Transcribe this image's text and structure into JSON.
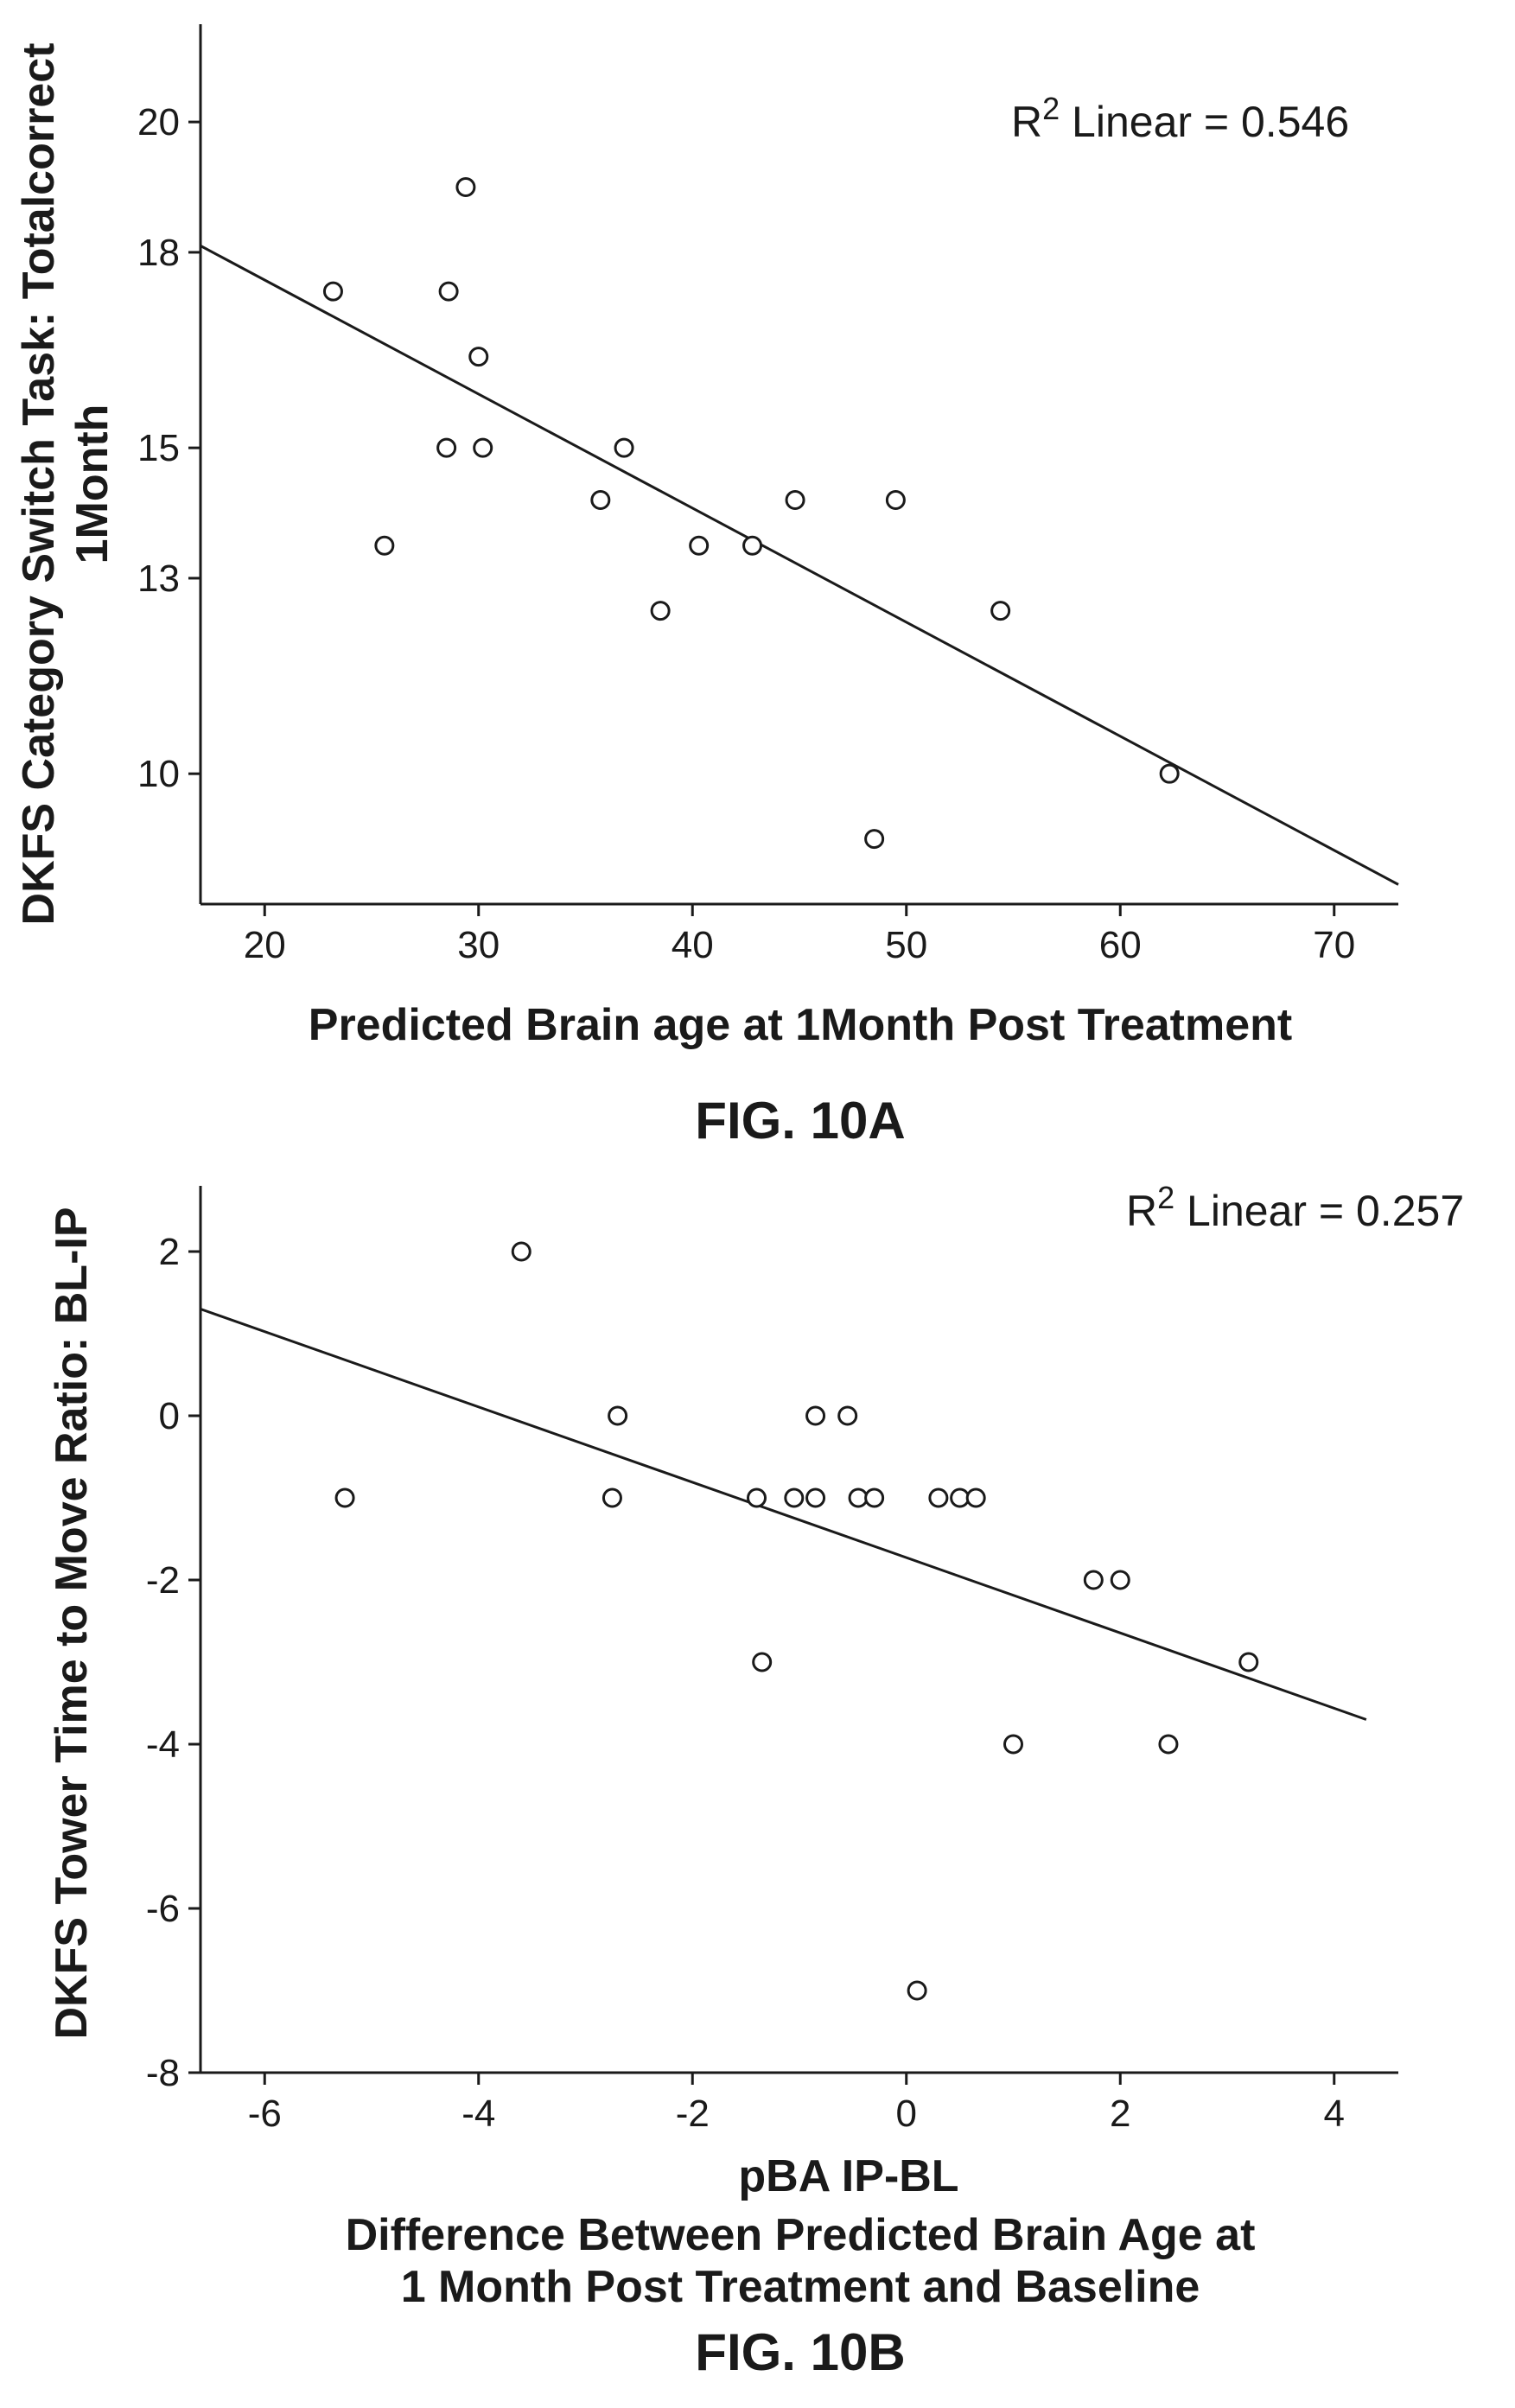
{
  "chart_data": [
    {
      "type": "scatter",
      "caption": "FIG. 10A",
      "xlabel": "Predicted Brain age at 1Month Post Treatment",
      "ylabel_lines": [
        "DKFS Category Switch Task: Totalcorrect",
        "1Month"
      ],
      "xlim": [
        17,
        73
      ],
      "ylim": [
        8,
        21.5
      ],
      "xticks": [
        20,
        30,
        40,
        50,
        60,
        70
      ],
      "yticks": [
        10,
        13,
        15,
        18,
        20
      ],
      "annotation": {
        "prefix": "R",
        "sup": "2",
        "text": " Linear = 0.546"
      },
      "fit_line": {
        "x": [
          17,
          73
        ],
        "y": [
          18.1,
          8.3
        ]
      },
      "points": [
        {
          "x": 23.2,
          "y": 17.4
        },
        {
          "x": 25.6,
          "y": 13.5
        },
        {
          "x": 28.5,
          "y": 15.0
        },
        {
          "x": 28.6,
          "y": 17.4
        },
        {
          "x": 29.4,
          "y": 19.0
        },
        {
          "x": 30.0,
          "y": 16.4
        },
        {
          "x": 30.2,
          "y": 15.0
        },
        {
          "x": 35.7,
          "y": 14.2
        },
        {
          "x": 36.8,
          "y": 15.0
        },
        {
          "x": 38.5,
          "y": 12.5
        },
        {
          "x": 40.3,
          "y": 13.5
        },
        {
          "x": 42.8,
          "y": 13.5
        },
        {
          "x": 44.8,
          "y": 14.2
        },
        {
          "x": 48.5,
          "y": 9.0
        },
        {
          "x": 49.5,
          "y": 14.2
        },
        {
          "x": 54.4,
          "y": 12.5
        },
        {
          "x": 62.3,
          "y": 10.0
        }
      ]
    },
    {
      "type": "scatter",
      "caption": "FIG. 10B",
      "xlabel_lines": [
        "pBA IP-BL",
        "Difference Between Predicted Brain Age at",
        "1 Month Post Treatment and Baseline"
      ],
      "ylabel": "DKFS Tower Time to Move Ratio: BL-IP",
      "xlim": [
        -6.6,
        4.6
      ],
      "ylim": [
        -8,
        2.8
      ],
      "xticks": [
        -6,
        -4,
        -2,
        0,
        2,
        4
      ],
      "yticks": [
        2,
        0,
        -2,
        -4,
        -6,
        -8
      ],
      "annotation": {
        "prefix": "R",
        "sup": "2",
        "text": " Linear = 0.257"
      },
      "fit_line": {
        "x": [
          -6.6,
          4.3
        ],
        "y": [
          1.3,
          -3.7
        ]
      },
      "points": [
        {
          "x": -5.25,
          "y": -1
        },
        {
          "x": -3.6,
          "y": 2
        },
        {
          "x": -2.75,
          "y": -1
        },
        {
          "x": -2.7,
          "y": 0
        },
        {
          "x": -1.4,
          "y": -1
        },
        {
          "x": -1.35,
          "y": -3
        },
        {
          "x": -1.05,
          "y": -1
        },
        {
          "x": -0.85,
          "y": 0
        },
        {
          "x": -0.85,
          "y": -1
        },
        {
          "x": -0.55,
          "y": 0
        },
        {
          "x": -0.45,
          "y": -1
        },
        {
          "x": -0.3,
          "y": -1
        },
        {
          "x": 0.1,
          "y": -7
        },
        {
          "x": 0.3,
          "y": -1
        },
        {
          "x": 0.5,
          "y": -1
        },
        {
          "x": 0.65,
          "y": -1
        },
        {
          "x": 1.0,
          "y": -4
        },
        {
          "x": 1.75,
          "y": -2
        },
        {
          "x": 2.0,
          "y": -2
        },
        {
          "x": 2.45,
          "y": -4
        },
        {
          "x": 3.2,
          "y": -3
        }
      ]
    }
  ]
}
